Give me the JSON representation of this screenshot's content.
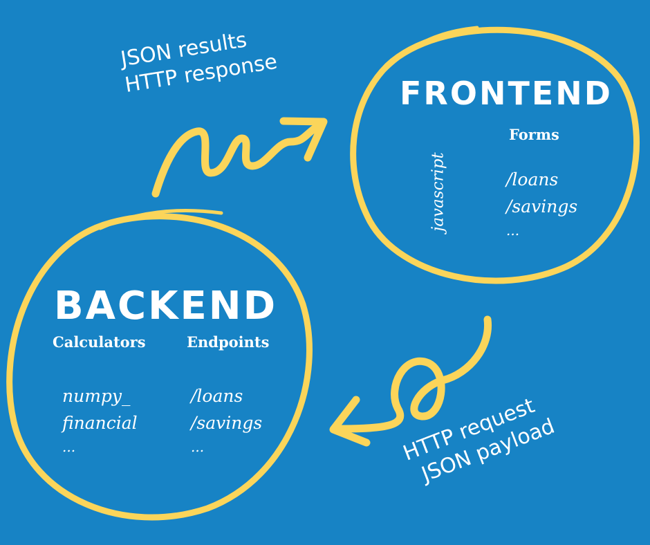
{
  "colors": {
    "background": "#1783c5",
    "accent": "#fbd55a",
    "text": "#ffffff"
  },
  "frontend": {
    "title": "FRONTEND",
    "side_label": "javascript",
    "forms_heading": "Forms",
    "forms_items": [
      "/loans",
      "/savings",
      "..."
    ]
  },
  "backend": {
    "title": "BACKEND",
    "calculators_heading": "Calculators",
    "endpoints_heading": "Endpoints",
    "calculators_items": [
      "numpy_",
      "financial",
      "..."
    ],
    "endpoints_items": [
      "/loans",
      "/savings",
      "..."
    ]
  },
  "response_label": {
    "line1": "JSON results",
    "line2": "HTTP response"
  },
  "request_label": {
    "line1": "HTTP request",
    "line2": "JSON payload"
  }
}
